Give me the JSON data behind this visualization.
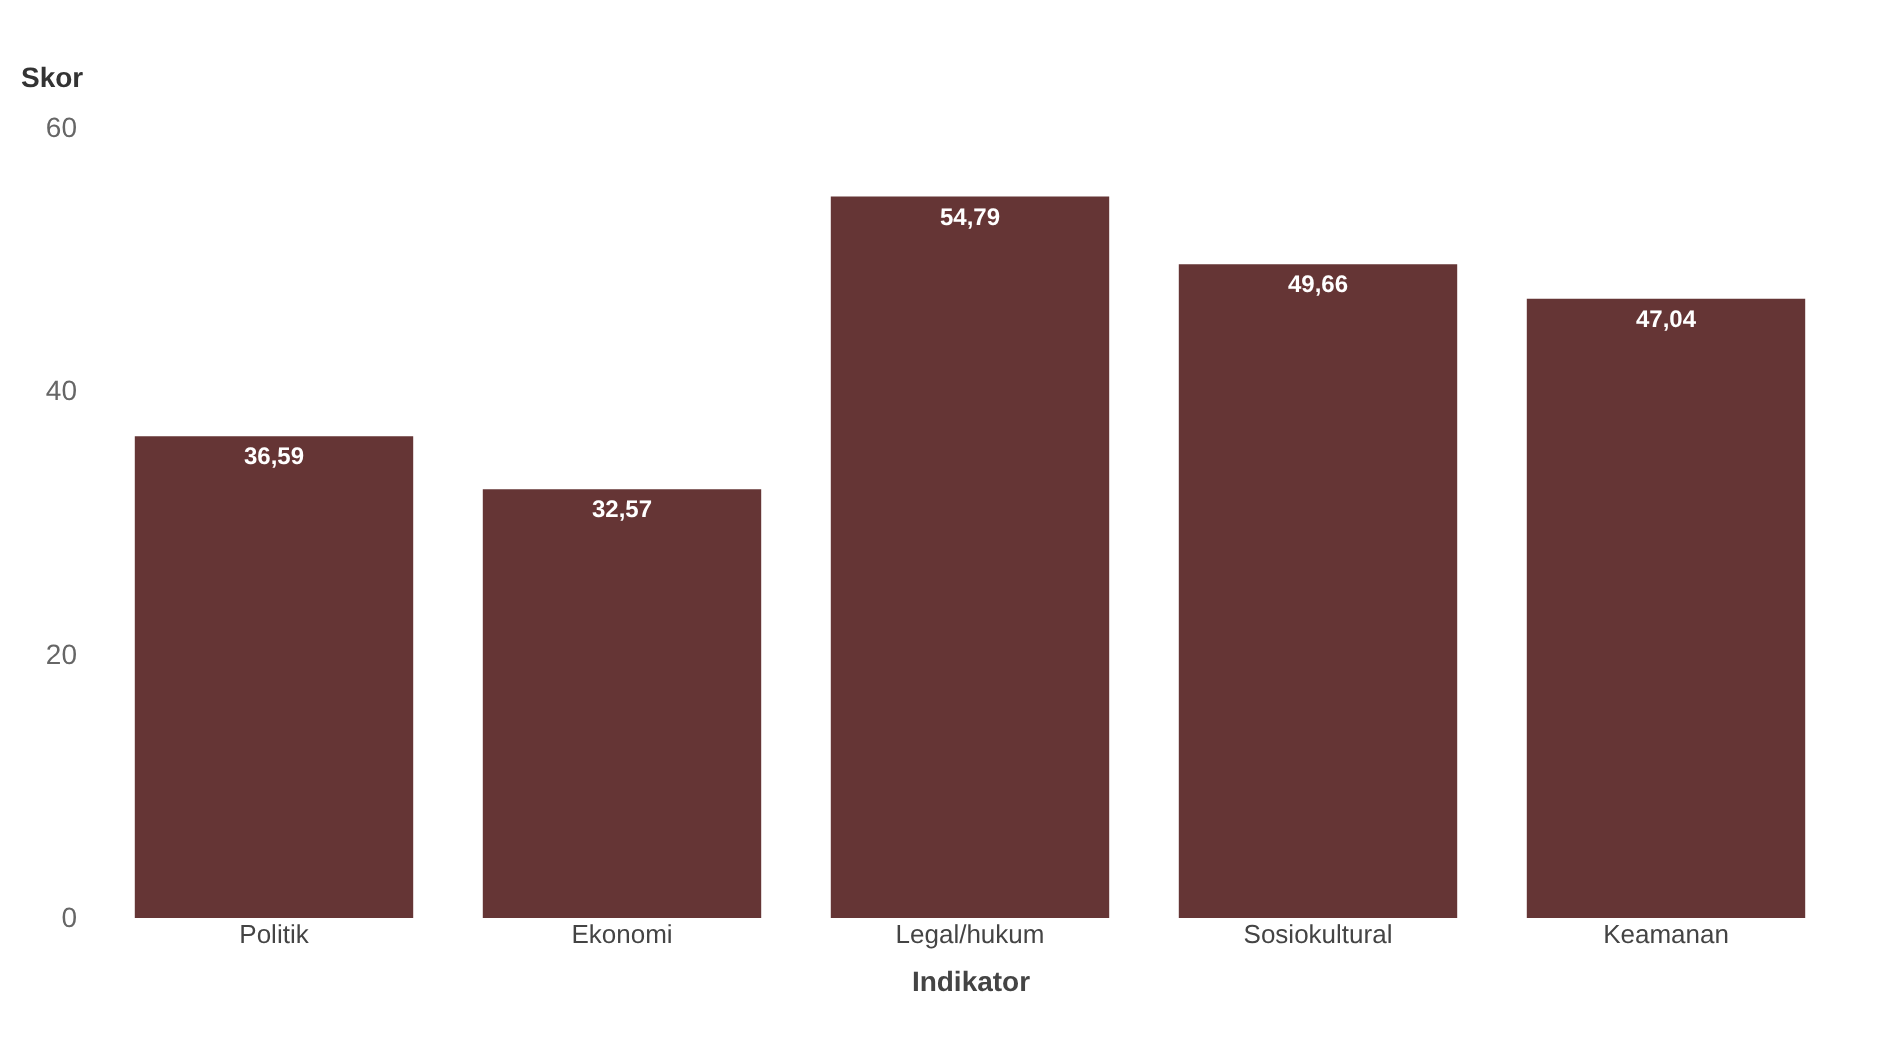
{
  "chart_data": {
    "type": "bar",
    "xlabel": "Indikator",
    "ylabel": "Skor",
    "categories": [
      "Politik",
      "Ekonomi",
      "Legal/hukum",
      "Sosiokultural",
      "Keamanan"
    ],
    "values": [
      36.59,
      32.57,
      54.79,
      49.66,
      47.04
    ],
    "value_labels": [
      "36,59",
      "32,57",
      "54,79",
      "49,66",
      "47,04"
    ],
    "color": "#653535",
    "ylim": [
      0,
      60
    ],
    "yticks": [
      0,
      20,
      40,
      60
    ],
    "grid": false
  }
}
